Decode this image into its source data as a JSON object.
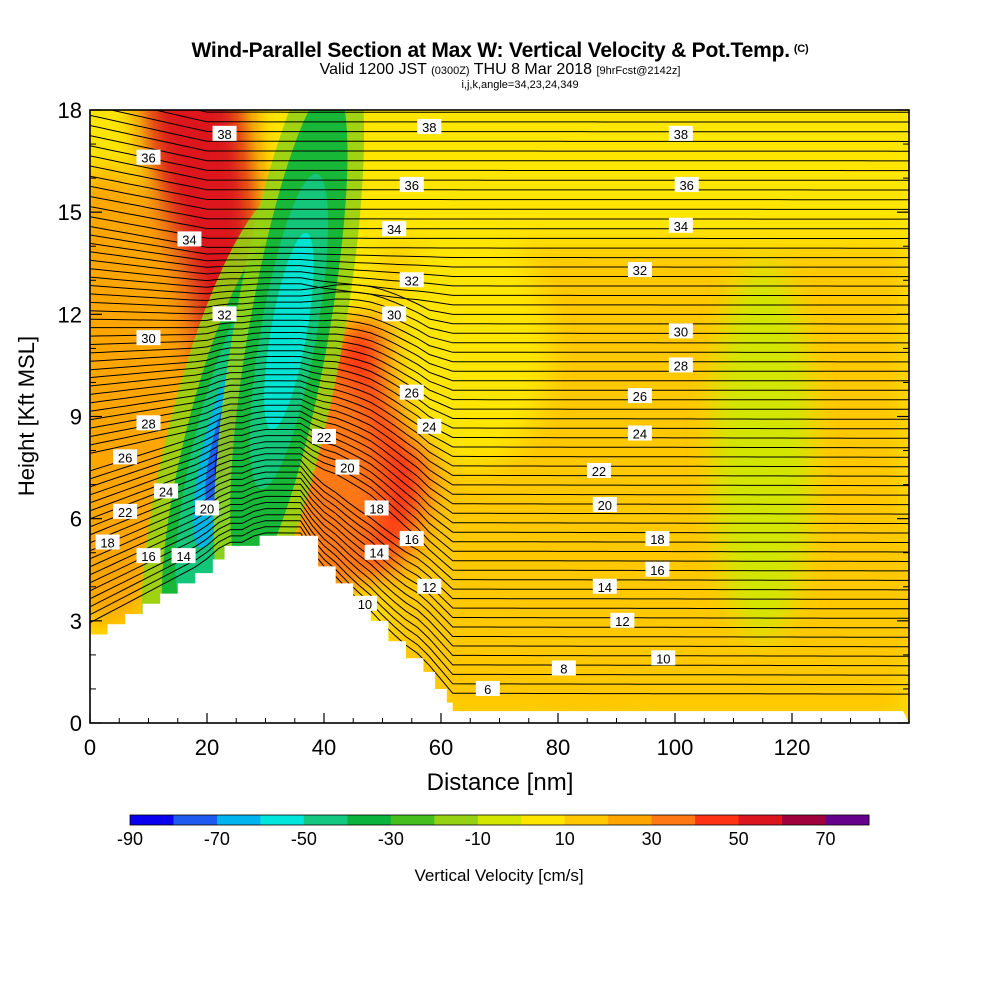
{
  "header": {
    "title": "Wind-Parallel Section at Max W: Vertical Velocity & Pot.Temp.",
    "copyright": "(C)",
    "valid_prefix": "Valid 1200 JST",
    "utc": "(0300Z)",
    "valid_date": "THU 8 Mar 2018",
    "forecast": "[9hrFcst@2142z]",
    "indices": "i,j,k,angle=34,23,24,349"
  },
  "chart_data": {
    "type": "heatmap",
    "title": "Wind-Parallel Section at Max W: Vertical Velocity & Pot.Temp.",
    "xlabel": "Distance [nm]",
    "ylabel": "Height [Kft MSL]",
    "xlim": [
      0,
      140
    ],
    "ylim": [
      0,
      18
    ],
    "x_ticks": [
      0,
      20,
      40,
      60,
      80,
      100,
      120
    ],
    "y_ticks": [
      0,
      3,
      6,
      9,
      12,
      15,
      18
    ],
    "colorbar": {
      "label": "Vertical Velocity [cm/s]",
      "tick_labels": [
        "-90",
        "-70",
        "-50",
        "-30",
        "-10",
        "10",
        "30",
        "50",
        "70"
      ],
      "levels": [
        -90,
        -80,
        -70,
        -60,
        -50,
        -40,
        -30,
        -20,
        -10,
        0,
        10,
        20,
        30,
        40,
        50,
        60,
        70
      ],
      "colors": [
        "#0a00f0",
        "#1e5af0",
        "#00b4f0",
        "#00e6dc",
        "#14c882",
        "#0ab43c",
        "#46be1e",
        "#96d214",
        "#d2e600",
        "#ffe600",
        "#ffc800",
        "#ffa500",
        "#ff7814",
        "#ff3214",
        "#dc141e",
        "#a0003c",
        "#64008c"
      ]
    },
    "terrain_profile": {
      "x": [
        0,
        3,
        6,
        9,
        12,
        15,
        18,
        21,
        23,
        26,
        29,
        33,
        36,
        39,
        42,
        45,
        48,
        51,
        54,
        57,
        59,
        61,
        62,
        70,
        80,
        100,
        120,
        139
      ],
      "y": [
        2.6,
        2.9,
        3.2,
        3.5,
        3.8,
        4.1,
        4.4,
        4.8,
        5.2,
        5.2,
        5.5,
        5.5,
        5.5,
        4.6,
        4.1,
        3.5,
        3.0,
        2.4,
        1.9,
        1.5,
        1.0,
        0.6,
        0.35,
        0.35,
        0.35,
        0.35,
        0.35,
        0.35
      ]
    },
    "vv_features": [
      {
        "x": 23,
        "y": 8.0,
        "value": -90
      },
      {
        "x": 34,
        "y": 11.5,
        "value": -55
      },
      {
        "x": 3,
        "y": 9.5,
        "value": 35
      },
      {
        "x": 19,
        "y": 16.5,
        "value": 45
      },
      {
        "x": 48,
        "y": 8.0,
        "value": 35
      },
      {
        "x": 42,
        "y": 7.0,
        "value": 30
      },
      {
        "x": 139,
        "y": 3.8,
        "value": 35
      },
      {
        "x": 85,
        "y": 5.0,
        "value": 15
      },
      {
        "x": 65,
        "y": 11.0,
        "value": 12
      },
      {
        "x": 115,
        "y": 8.0,
        "value": -5
      }
    ],
    "potential_temperature_contours": [
      {
        "value": 6,
        "label_x": 68,
        "label_y": 1.0
      },
      {
        "value": 8,
        "label_x": 81,
        "label_y": 1.6
      },
      {
        "value": 10,
        "label_x": 47,
        "label_y": 3.5,
        "label2_x": 98,
        "label2_y": 1.9
      },
      {
        "value": 12,
        "label_x": 58,
        "label_y": 4.0,
        "label2_x": 91,
        "label2_y": 3.0
      },
      {
        "value": 14,
        "label_x": 16,
        "label_y": 4.9,
        "label2_x": 49,
        "label2_y": 5.0,
        "label3_x": 88,
        "label3_y": 4.0
      },
      {
        "value": 16,
        "label_x": 10,
        "label_y": 4.9,
        "label2_x": 55,
        "label2_y": 5.4,
        "label3_x": 97,
        "label3_y": 4.5
      },
      {
        "value": 18,
        "label_x": 3,
        "label_y": 5.3,
        "label2_x": 49,
        "label2_y": 6.3,
        "label3_x": 97,
        "label3_y": 5.4
      },
      {
        "value": 20,
        "label_x": 20,
        "label_y": 6.3,
        "label2_x": 44,
        "label2_y": 7.5,
        "label3_x": 88,
        "label3_y": 6.4
      },
      {
        "value": 22,
        "label_x": 6,
        "label_y": 6.2,
        "label2_x": 40,
        "label2_y": 8.4,
        "label3_x": 87,
        "label3_y": 7.4
      },
      {
        "value": 24,
        "label_x": 13,
        "label_y": 6.8,
        "label2_x": 58,
        "label2_y": 8.7,
        "label3_x": 94,
        "label3_y": 8.5
      },
      {
        "value": 26,
        "label_x": 6,
        "label_y": 7.8,
        "label2_x": 55,
        "label2_y": 9.7,
        "label3_x": 94,
        "label3_y": 9.6
      },
      {
        "value": 28,
        "label_x": 10,
        "label_y": 8.8,
        "label2_x": 101,
        "label2_y": 10.5
      },
      {
        "value": 30,
        "label_x": 10,
        "label_y": 11.3,
        "label2_x": 52,
        "label2_y": 12.0,
        "label3_x": 101,
        "label3_y": 11.5
      },
      {
        "value": 32,
        "label_x": 23,
        "label_y": 12.0,
        "label2_x": 55,
        "label2_y": 13.0,
        "label3_x": 94,
        "label3_y": 13.3
      },
      {
        "value": 34,
        "label_x": 17,
        "label_y": 14.2,
        "label2_x": 52,
        "label2_y": 14.5,
        "label3_x": 101,
        "label3_y": 14.6
      },
      {
        "value": 36,
        "label_x": 10,
        "label_y": 16.6,
        "label2_x": 55,
        "label2_y": 15.8,
        "label3_x": 102,
        "label3_y": 15.8
      },
      {
        "value": 38,
        "label_x": 23,
        "label_y": 17.3,
        "label2_x": 58,
        "label2_y": 17.5,
        "label3_x": 101,
        "label3_y": 17.3
      }
    ]
  }
}
